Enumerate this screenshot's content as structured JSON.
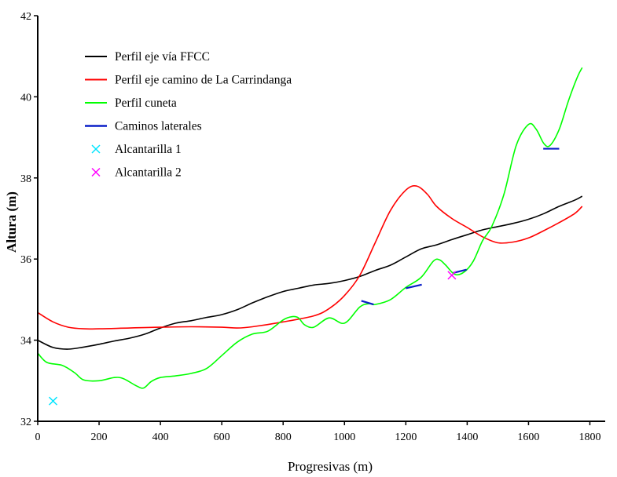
{
  "chart_data": {
    "type": "line",
    "xlabel": "Progresivas (m)",
    "ylabel": "Altura (m)",
    "xlim": [
      0,
      1850
    ],
    "ylim": [
      32,
      42
    ],
    "xticks": [
      0,
      200,
      400,
      600,
      800,
      1000,
      1200,
      1400,
      1600,
      1800
    ],
    "yticks": [
      32,
      34,
      36,
      38,
      40,
      42
    ],
    "grid": false,
    "legend_position": "top-left",
    "series": [
      {
        "name": "Perfil eje vía FFCC",
        "kind": "line",
        "color": "#000000",
        "x": [
          0,
          50,
          100,
          150,
          200,
          250,
          300,
          350,
          400,
          450,
          500,
          550,
          600,
          650,
          700,
          750,
          800,
          850,
          900,
          950,
          1000,
          1050,
          1100,
          1150,
          1200,
          1250,
          1300,
          1350,
          1400,
          1450,
          1500,
          1550,
          1600,
          1650,
          1700,
          1750,
          1775
        ],
        "y": [
          34.0,
          33.82,
          33.78,
          33.83,
          33.9,
          33.98,
          34.05,
          34.15,
          34.3,
          34.42,
          34.48,
          34.56,
          34.63,
          34.75,
          34.92,
          35.07,
          35.2,
          35.28,
          35.36,
          35.4,
          35.47,
          35.57,
          35.72,
          35.85,
          36.05,
          36.25,
          36.35,
          36.48,
          36.6,
          36.72,
          36.8,
          36.88,
          36.98,
          37.12,
          37.3,
          37.45,
          37.55
        ]
      },
      {
        "name": "Perfil eje camino de La Carrindanga",
        "kind": "line",
        "color": "#ff0000",
        "x": [
          0,
          50,
          100,
          150,
          200,
          300,
          400,
          500,
          600,
          650,
          700,
          800,
          900,
          950,
          1000,
          1050,
          1100,
          1150,
          1200,
          1235,
          1270,
          1300,
          1350,
          1400,
          1450,
          1500,
          1550,
          1600,
          1650,
          1700,
          1750,
          1775
        ],
        "y": [
          34.68,
          34.45,
          34.32,
          34.28,
          34.28,
          34.3,
          34.32,
          34.33,
          34.32,
          34.3,
          34.33,
          34.45,
          34.6,
          34.78,
          35.1,
          35.6,
          36.4,
          37.2,
          37.7,
          37.8,
          37.6,
          37.3,
          37.0,
          36.78,
          36.55,
          36.4,
          36.42,
          36.52,
          36.7,
          36.9,
          37.12,
          37.3
        ]
      },
      {
        "name": "Perfil cuneta",
        "kind": "line",
        "color": "#00ff00",
        "x": [
          0,
          30,
          80,
          120,
          150,
          200,
          250,
          280,
          320,
          345,
          370,
          400,
          450,
          500,
          550,
          600,
          650,
          700,
          750,
          800,
          830,
          850,
          870,
          900,
          950,
          1000,
          1050,
          1080,
          1100,
          1150,
          1200,
          1250,
          1290,
          1310,
          1330,
          1360,
          1390,
          1420,
          1450,
          1480,
          1520,
          1560,
          1600,
          1625,
          1650,
          1670,
          1700,
          1730,
          1760,
          1775
        ],
        "y": [
          33.68,
          33.45,
          33.38,
          33.2,
          33.02,
          33.0,
          33.08,
          33.05,
          32.88,
          32.82,
          32.98,
          33.08,
          33.12,
          33.18,
          33.3,
          33.62,
          33.95,
          34.15,
          34.22,
          34.5,
          34.58,
          34.55,
          34.38,
          34.32,
          34.55,
          34.42,
          34.82,
          34.9,
          34.88,
          35.0,
          35.3,
          35.55,
          35.95,
          35.98,
          35.85,
          35.62,
          35.68,
          35.95,
          36.45,
          36.8,
          37.6,
          38.8,
          39.32,
          39.2,
          38.85,
          38.8,
          39.2,
          39.9,
          40.5,
          40.72
        ]
      },
      {
        "name": "Caminos laterales",
        "kind": "segments",
        "color": "#0a1ec8",
        "segments": [
          [
            [
              1055,
              34.97
            ],
            [
              1095,
              34.88
            ]
          ],
          [
            [
              1200,
              35.28
            ],
            [
              1252,
              35.37
            ]
          ],
          [
            [
              1355,
              35.66
            ],
            [
              1398,
              35.74
            ]
          ],
          [
            [
              1648,
              38.72
            ],
            [
              1700,
              38.72
            ]
          ]
        ]
      },
      {
        "name": "Alcantarilla 1",
        "kind": "scatter",
        "marker": "x",
        "color": "#00e5ff",
        "x": [
          50
        ],
        "y": [
          32.5
        ]
      },
      {
        "name": "Alcantarilla 2",
        "kind": "scatter",
        "marker": "x",
        "color": "#ff00ff",
        "x": [
          1350
        ],
        "y": [
          35.6
        ]
      }
    ]
  }
}
